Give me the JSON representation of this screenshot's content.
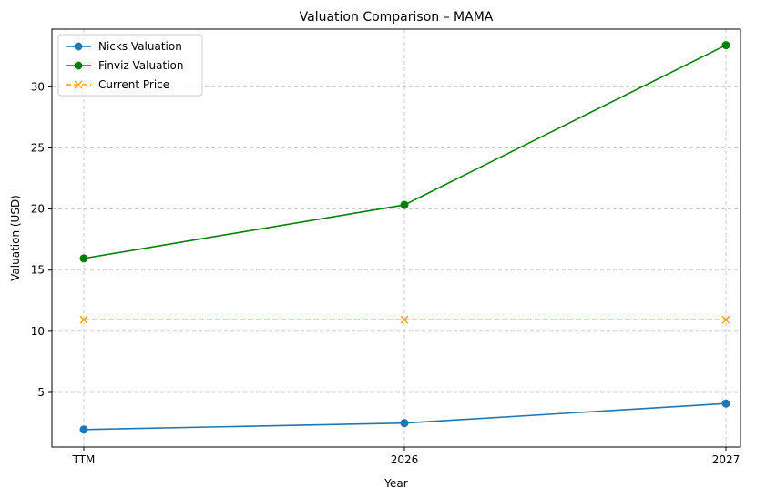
{
  "chart_data": {
    "type": "line",
    "title": "Valuation Comparison – MAMA",
    "xlabel": "Year",
    "ylabel": "Valuation (USD)",
    "categories": [
      "TTM",
      "2026",
      "2027"
    ],
    "ylim": [
      0.53,
      34.72
    ],
    "yticks": [
      5,
      10,
      15,
      20,
      25,
      30
    ],
    "grid": true,
    "legend_position": "top-left",
    "series": [
      {
        "name": "Nicks Valuation",
        "values": [
          1.96,
          2.49,
          4.09
        ],
        "color": "#1f77b4",
        "marker": "circle",
        "dash": "solid"
      },
      {
        "name": "Finviz Valuation",
        "values": [
          15.96,
          20.34,
          33.41
        ],
        "color": "#008000",
        "marker": "circle",
        "dash": "solid"
      },
      {
        "name": "Current Price",
        "values": [
          10.94,
          10.94,
          10.94
        ],
        "color": "#ffa500",
        "marker": "x",
        "dash": "dashed"
      }
    ]
  }
}
